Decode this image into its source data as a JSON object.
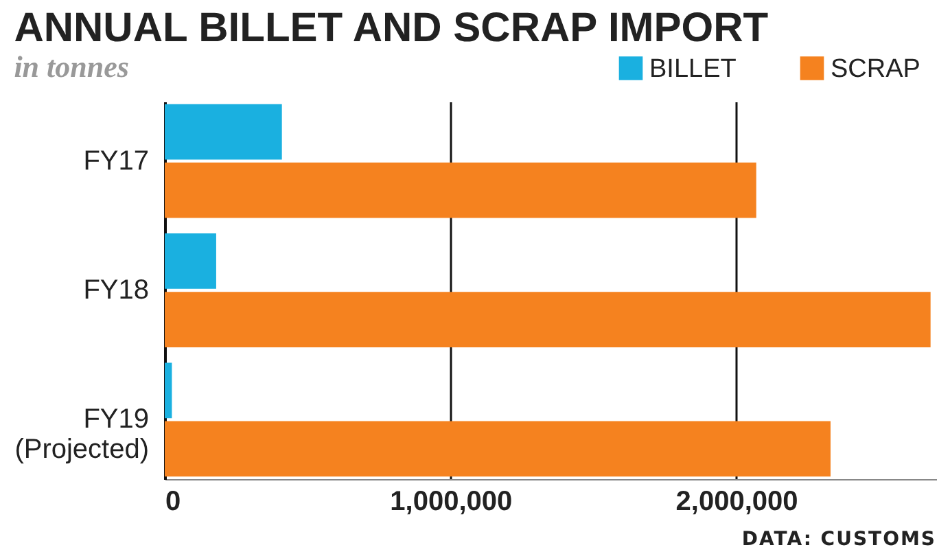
{
  "chart_data": {
    "type": "bar",
    "orientation": "horizontal",
    "title": "ANNUAL BILLET AND SCRAP IMPORT",
    "subtitle": "in tonnes",
    "categories": [
      "FY17",
      "FY18",
      "FY19\n(Projected)"
    ],
    "series": [
      {
        "name": "BILLET",
        "color": "#1ab0e0",
        "values": [
          410000,
          180000,
          25000
        ]
      },
      {
        "name": "SCRAP",
        "color": "#f5821f",
        "values": [
          2070000,
          2680000,
          2330000
        ]
      }
    ],
    "xlim": [
      0,
      2700000
    ],
    "xticks": [
      0,
      {
        "value": 1000000,
        "label": "1,000,000"
      },
      {
        "value": 2000000,
        "label": "2,000,000"
      }
    ],
    "grid": "x",
    "legend": "top right",
    "annotations": [
      "DATA: CUSTOMS"
    ]
  }
}
